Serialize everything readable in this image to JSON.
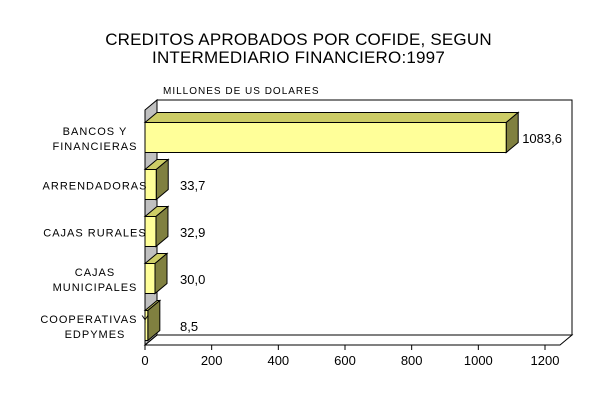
{
  "title_line_1": "CREDITOS APROBADOS POR COFIDE, SEGUN",
  "title_line_2": "INTERMEDIARIO FINANCIERO:1997",
  "chart_data": {
    "type": "bar",
    "orientation": "horizontal",
    "three_d": true,
    "unit_label": "MILLONES DE US DOLARES",
    "categories": [
      [
        "BANCOS Y",
        "FINANCIERAS"
      ],
      [
        "ARRENDADORAS"
      ],
      [
        "CAJAS RURALES"
      ],
      [
        "CAJAS",
        "MUNICIPALES"
      ],
      [
        "COOPERATIVAS Y",
        "EDPYMES"
      ]
    ],
    "values": [
      1083.6,
      33.7,
      32.9,
      30.0,
      8.5
    ],
    "value_labels": [
      "1083,6",
      "33,7",
      "32,9",
      "30,0",
      "8,5"
    ],
    "xlim": [
      0,
      1200
    ],
    "xticks": [
      0,
      200,
      400,
      600,
      800,
      1000,
      1200
    ],
    "grid": false,
    "colors": {
      "bar_front": "#ffff99",
      "bar_side": "#808040",
      "bar_top": "#cccc66",
      "wall": "#c0c0c0",
      "axis": "#000000"
    }
  }
}
